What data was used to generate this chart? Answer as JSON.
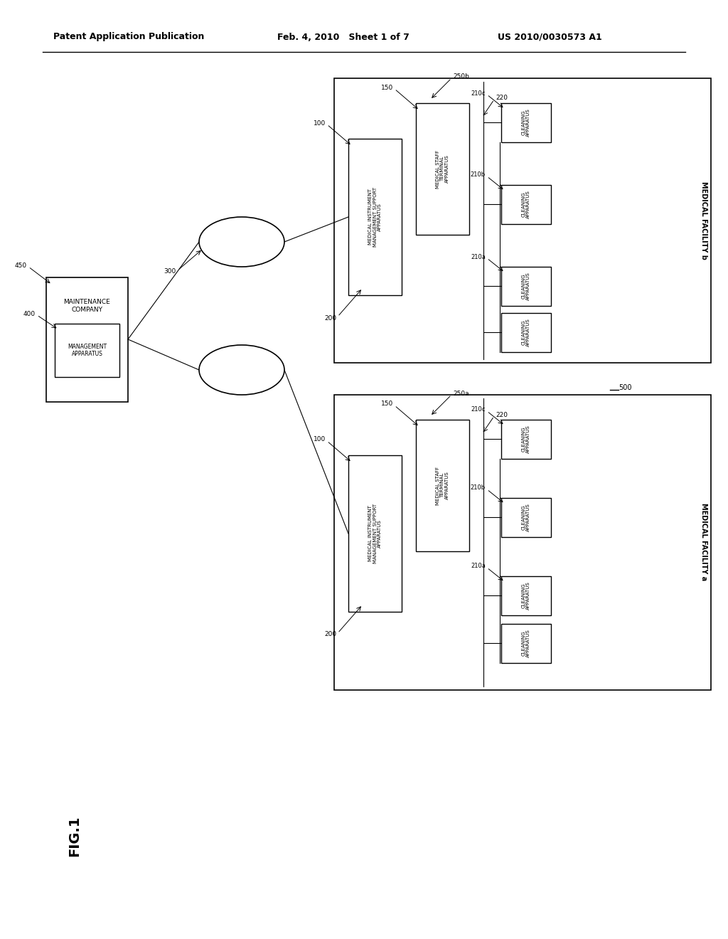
{
  "header_left": "Patent Application Publication",
  "header_mid": "Feb. 4, 2010   Sheet 1 of 7",
  "header_right": "US 2010/0030573 A1",
  "fig_label": "FIG.1",
  "bg_color": "#ffffff",
  "ec": "#000000",
  "tc": "#000000",
  "lc": "#000000"
}
